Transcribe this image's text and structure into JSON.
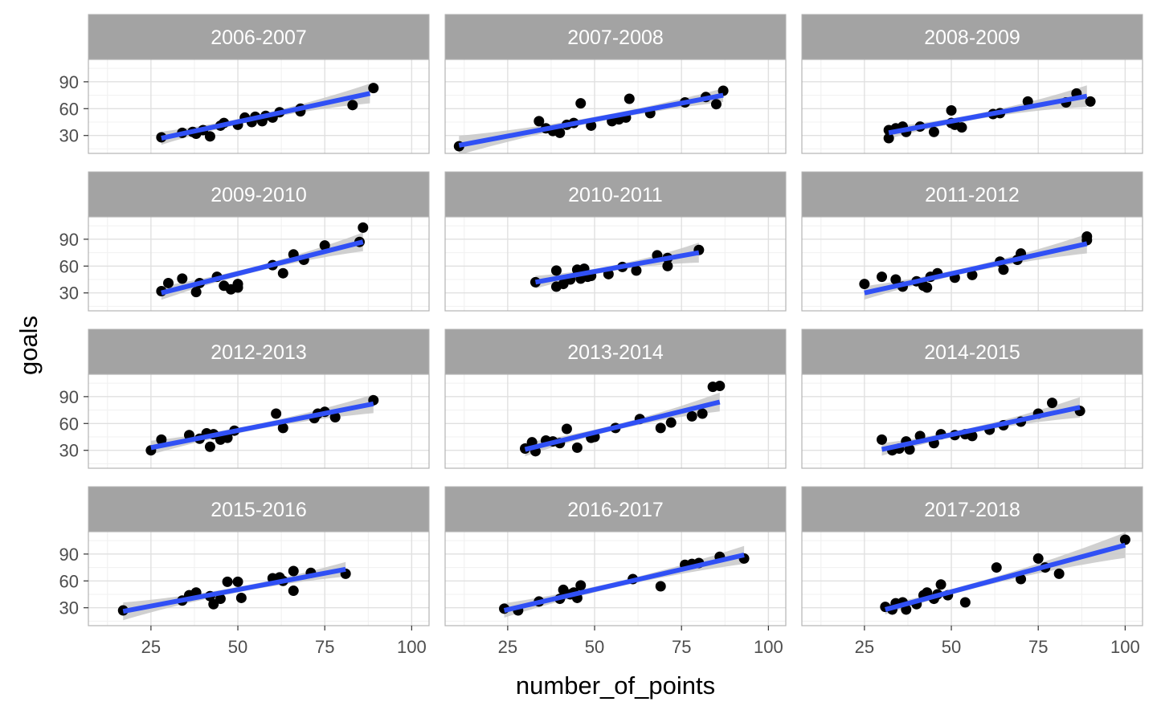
{
  "chart_data": {
    "type": "scatter",
    "xlabel": "number_of_points",
    "ylabel": "goals",
    "xlim": [
      7,
      105
    ],
    "ylim": [
      10,
      115
    ],
    "xticks": [
      25,
      50,
      75,
      100
    ],
    "yticks": [
      30,
      60,
      90
    ],
    "grid": true,
    "colors": {
      "point": "#000000",
      "line": "#3050f5",
      "band": "#c8c8c8",
      "strip": "#a3a3a3",
      "panel_border": "#b3b3b3",
      "grid_major": "#e0e0e0",
      "grid_minor": "#f0f0f0"
    },
    "facets": [
      {
        "label": "2006-2007",
        "fit": [
          [
            28,
            27
          ],
          [
            88,
            77
          ]
        ],
        "points": [
          [
            28,
            28
          ],
          [
            34,
            33
          ],
          [
            37,
            34
          ],
          [
            38,
            32
          ],
          [
            40,
            36
          ],
          [
            42,
            29
          ],
          [
            45,
            41
          ],
          [
            46,
            44
          ],
          [
            50,
            42
          ],
          [
            52,
            50
          ],
          [
            54,
            45
          ],
          [
            55,
            51
          ],
          [
            57,
            46
          ],
          [
            58,
            52
          ],
          [
            60,
            50
          ],
          [
            62,
            56
          ],
          [
            68,
            57
          ],
          [
            68,
            60
          ],
          [
            83,
            64
          ],
          [
            89,
            83
          ]
        ]
      },
      {
        "label": "2007-2008",
        "fit": [
          [
            11,
            19
          ],
          [
            87,
            75
          ]
        ],
        "points": [
          [
            11,
            18
          ],
          [
            34,
            46
          ],
          [
            36,
            38
          ],
          [
            38,
            35
          ],
          [
            40,
            33
          ],
          [
            42,
            42
          ],
          [
            44,
            44
          ],
          [
            46,
            66
          ],
          [
            49,
            41
          ],
          [
            55,
            46
          ],
          [
            57,
            48
          ],
          [
            59,
            50
          ],
          [
            60,
            71
          ],
          [
            66,
            55
          ],
          [
            76,
            67
          ],
          [
            82,
            73
          ],
          [
            85,
            65
          ],
          [
            87,
            80
          ]
        ]
      },
      {
        "label": "2008-2009",
        "fit": [
          [
            32,
            33
          ],
          [
            89,
            74
          ]
        ],
        "points": [
          [
            32,
            27
          ],
          [
            32,
            36
          ],
          [
            34,
            38
          ],
          [
            36,
            40
          ],
          [
            37,
            34
          ],
          [
            41,
            40
          ],
          [
            45,
            34
          ],
          [
            50,
            58
          ],
          [
            50,
            44
          ],
          [
            51,
            42
          ],
          [
            53,
            39
          ],
          [
            62,
            54
          ],
          [
            64,
            55
          ],
          [
            72,
            68
          ],
          [
            83,
            67
          ],
          [
            86,
            77
          ],
          [
            90,
            68
          ]
        ]
      },
      {
        "label": "2009-2010",
        "fit": [
          [
            28,
            30
          ],
          [
            86,
            87
          ]
        ],
        "points": [
          [
            28,
            32
          ],
          [
            30,
            41
          ],
          [
            34,
            46
          ],
          [
            38,
            31
          ],
          [
            39,
            41
          ],
          [
            44,
            48
          ],
          [
            46,
            38
          ],
          [
            48,
            34
          ],
          [
            50,
            40
          ],
          [
            50,
            36
          ],
          [
            60,
            61
          ],
          [
            63,
            52
          ],
          [
            66,
            73
          ],
          [
            69,
            67
          ],
          [
            75,
            83
          ],
          [
            85,
            87
          ],
          [
            86,
            103
          ]
        ]
      },
      {
        "label": "2010-2011",
        "fit": [
          [
            33,
            42
          ],
          [
            80,
            75
          ]
        ],
        "points": [
          [
            33,
            42
          ],
          [
            39,
            37
          ],
          [
            39,
            55
          ],
          [
            41,
            40
          ],
          [
            43,
            45
          ],
          [
            45,
            56
          ],
          [
            46,
            46
          ],
          [
            47,
            57
          ],
          [
            48,
            48
          ],
          [
            49,
            49
          ],
          [
            54,
            51
          ],
          [
            58,
            59
          ],
          [
            62,
            55
          ],
          [
            68,
            72
          ],
          [
            71,
            60
          ],
          [
            71,
            69
          ],
          [
            80,
            78
          ]
        ]
      },
      {
        "label": "2011-2012",
        "fit": [
          [
            25,
            30
          ],
          [
            89,
            85
          ]
        ],
        "points": [
          [
            25,
            40
          ],
          [
            30,
            48
          ],
          [
            34,
            45
          ],
          [
            36,
            37
          ],
          [
            40,
            43
          ],
          [
            42,
            38
          ],
          [
            43,
            36
          ],
          [
            44,
            48
          ],
          [
            46,
            52
          ],
          [
            51,
            47
          ],
          [
            56,
            50
          ],
          [
            64,
            65
          ],
          [
            65,
            56
          ],
          [
            69,
            67
          ],
          [
            70,
            74
          ],
          [
            89,
            89
          ],
          [
            89,
            93
          ]
        ]
      },
      {
        "label": "2012-2013",
        "fit": [
          [
            25,
            33
          ],
          [
            89,
            82
          ]
        ],
        "points": [
          [
            25,
            30
          ],
          [
            28,
            42
          ],
          [
            36,
            47
          ],
          [
            39,
            43
          ],
          [
            41,
            49
          ],
          [
            42,
            34
          ],
          [
            43,
            48
          ],
          [
            45,
            42
          ],
          [
            47,
            44
          ],
          [
            49,
            52
          ],
          [
            61,
            71
          ],
          [
            63,
            55
          ],
          [
            72,
            66
          ],
          [
            73,
            71
          ],
          [
            75,
            73
          ],
          [
            78,
            67
          ],
          [
            89,
            86
          ]
        ]
      },
      {
        "label": "2013-2014",
        "fit": [
          [
            30,
            31
          ],
          [
            86,
            84
          ]
        ],
        "points": [
          [
            30,
            32
          ],
          [
            32,
            39
          ],
          [
            33,
            29
          ],
          [
            36,
            41
          ],
          [
            38,
            40
          ],
          [
            40,
            38
          ],
          [
            42,
            54
          ],
          [
            45,
            33
          ],
          [
            49,
            44
          ],
          [
            50,
            45
          ],
          [
            56,
            55
          ],
          [
            63,
            65
          ],
          [
            69,
            55
          ],
          [
            72,
            61
          ],
          [
            78,
            68
          ],
          [
            81,
            71
          ],
          [
            84,
            101
          ],
          [
            86,
            102
          ]
        ]
      },
      {
        "label": "2014-2015",
        "fit": [
          [
            30,
            31
          ],
          [
            87,
            78
          ]
        ],
        "points": [
          [
            30,
            42
          ],
          [
            33,
            30
          ],
          [
            35,
            32
          ],
          [
            37,
            40
          ],
          [
            38,
            31
          ],
          [
            41,
            46
          ],
          [
            45,
            38
          ],
          [
            47,
            48
          ],
          [
            51,
            47
          ],
          [
            54,
            48
          ],
          [
            56,
            46
          ],
          [
            61,
            53
          ],
          [
            65,
            58
          ],
          [
            70,
            62
          ],
          [
            75,
            71
          ],
          [
            79,
            83
          ],
          [
            87,
            74
          ]
        ]
      },
      {
        "label": "2015-2016",
        "fit": [
          [
            17,
            26
          ],
          [
            81,
            73
          ]
        ],
        "points": [
          [
            17,
            27
          ],
          [
            34,
            38
          ],
          [
            36,
            44
          ],
          [
            38,
            47
          ],
          [
            42,
            43
          ],
          [
            43,
            34
          ],
          [
            45,
            40
          ],
          [
            47,
            59
          ],
          [
            50,
            59
          ],
          [
            51,
            41
          ],
          [
            60,
            63
          ],
          [
            62,
            64
          ],
          [
            63,
            60
          ],
          [
            66,
            71
          ],
          [
            66,
            49
          ],
          [
            71,
            69
          ],
          [
            81,
            68
          ]
        ]
      },
      {
        "label": "2016-2017",
        "fit": [
          [
            24,
            27
          ],
          [
            93,
            89
          ]
        ],
        "points": [
          [
            24,
            29
          ],
          [
            28,
            27
          ],
          [
            34,
            37
          ],
          [
            40,
            40
          ],
          [
            41,
            50
          ],
          [
            43,
            45
          ],
          [
            44,
            47
          ],
          [
            45,
            41
          ],
          [
            46,
            55
          ],
          [
            61,
            62
          ],
          [
            69,
            54
          ],
          [
            76,
            78
          ],
          [
            78,
            79
          ],
          [
            80,
            80
          ],
          [
            86,
            87
          ],
          [
            93,
            85
          ]
        ]
      },
      {
        "label": "2017-2018",
        "fit": [
          [
            31,
            28
          ],
          [
            100,
            100
          ]
        ],
        "points": [
          [
            31,
            31
          ],
          [
            33,
            28
          ],
          [
            34,
            35
          ],
          [
            36,
            36
          ],
          [
            37,
            28
          ],
          [
            40,
            34
          ],
          [
            42,
            44
          ],
          [
            43,
            47
          ],
          [
            45,
            40
          ],
          [
            46,
            45
          ],
          [
            47,
            56
          ],
          [
            49,
            44
          ],
          [
            54,
            36
          ],
          [
            63,
            75
          ],
          [
            70,
            62
          ],
          [
            75,
            85
          ],
          [
            77,
            75
          ],
          [
            81,
            68
          ],
          [
            100,
            106
          ]
        ]
      }
    ]
  }
}
